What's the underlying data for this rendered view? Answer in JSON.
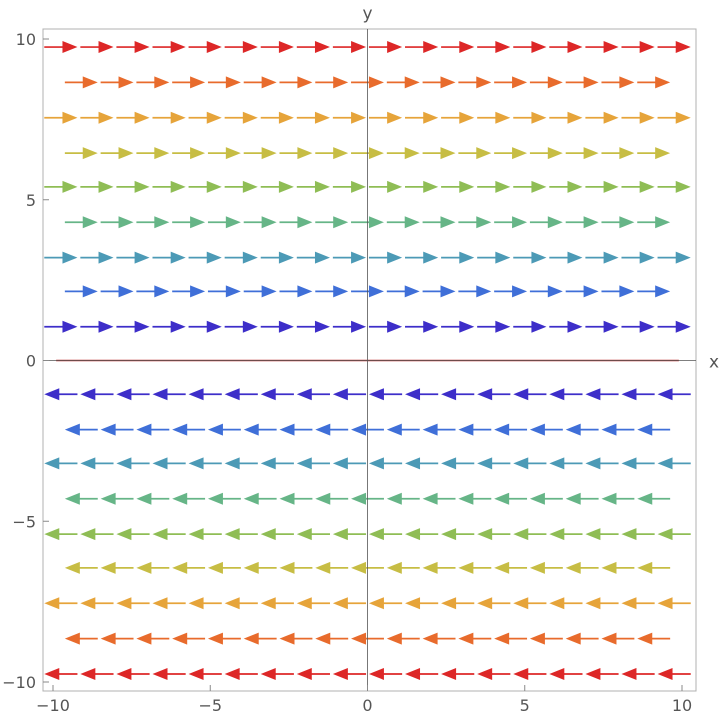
{
  "chart_data": {
    "type": "vector-field",
    "title": "",
    "xlabel": "x",
    "ylabel": "y",
    "xlim": [
      -10,
      10
    ],
    "ylim": [
      -10,
      10
    ],
    "xticks": [
      -10,
      -5,
      0,
      5,
      10
    ],
    "yticks": [
      -10,
      -5,
      0,
      5,
      10
    ],
    "xtick_labels": [
      "−10",
      "−5",
      "0",
      "5",
      "10"
    ],
    "ytick_labels": [
      "−10",
      "−5",
      "0",
      "5",
      "10"
    ],
    "grid": false,
    "legend": false,
    "field": {
      "direction_rule": "arrows point +x (right) for y > 0 and −x (left) for y < 0; zero-length vectors at y = 0",
      "rows": [
        {
          "y": 9.75,
          "x_from": -9.75,
          "x_to": 9.75,
          "count": 18,
          "direction": "right",
          "color": "#dd2727"
        },
        {
          "y": 8.65,
          "x_from": -9.1,
          "x_to": 9.1,
          "count": 17,
          "direction": "right",
          "color": "#e86b2c"
        },
        {
          "y": 7.55,
          "x_from": -9.75,
          "x_to": 9.75,
          "count": 18,
          "direction": "right",
          "color": "#e6a43a"
        },
        {
          "y": 6.45,
          "x_from": -9.1,
          "x_to": 9.1,
          "count": 17,
          "direction": "right",
          "color": "#c7bd44"
        },
        {
          "y": 5.4,
          "x_from": -9.75,
          "x_to": 9.75,
          "count": 18,
          "direction": "right",
          "color": "#8fbd55"
        },
        {
          "y": 4.3,
          "x_from": -9.1,
          "x_to": 9.1,
          "count": 17,
          "direction": "right",
          "color": "#66b587"
        },
        {
          "y": 3.2,
          "x_from": -9.75,
          "x_to": 9.75,
          "count": 18,
          "direction": "right",
          "color": "#4c9ab6"
        },
        {
          "y": 2.15,
          "x_from": -9.1,
          "x_to": 9.1,
          "count": 17,
          "direction": "right",
          "color": "#3f6fd8"
        },
        {
          "y": 1.05,
          "x_from": -9.75,
          "x_to": 9.75,
          "count": 18,
          "direction": "right",
          "color": "#3d2ec9"
        },
        {
          "y": 0.0,
          "x_from": -9.9,
          "x_to": 9.9,
          "count": 0,
          "direction": "none",
          "color": "#c03030"
        },
        {
          "y": -1.05,
          "x_from": -9.75,
          "x_to": 9.75,
          "count": 18,
          "direction": "left",
          "color": "#3d2ec9"
        },
        {
          "y": -2.15,
          "x_from": -9.1,
          "x_to": 9.1,
          "count": 17,
          "direction": "left",
          "color": "#3f6fd8"
        },
        {
          "y": -3.2,
          "x_from": -9.75,
          "x_to": 9.75,
          "count": 18,
          "direction": "left",
          "color": "#4c9ab6"
        },
        {
          "y": -4.3,
          "x_from": -9.1,
          "x_to": 9.1,
          "count": 17,
          "direction": "left",
          "color": "#66b587"
        },
        {
          "y": -5.4,
          "x_from": -9.75,
          "x_to": 9.75,
          "count": 18,
          "direction": "left",
          "color": "#8fbd55"
        },
        {
          "y": -6.45,
          "x_from": -9.1,
          "x_to": 9.1,
          "count": 17,
          "direction": "left",
          "color": "#c7bd44"
        },
        {
          "y": -7.55,
          "x_from": -9.75,
          "x_to": 9.75,
          "count": 18,
          "direction": "left",
          "color": "#e6a43a"
        },
        {
          "y": -8.65,
          "x_from": -9.1,
          "x_to": 9.1,
          "count": 17,
          "direction": "left",
          "color": "#e86b2c"
        },
        {
          "y": -9.75,
          "x_from": -9.75,
          "x_to": 9.75,
          "count": 18,
          "direction": "left",
          "color": "#dd2727"
        }
      ]
    }
  }
}
